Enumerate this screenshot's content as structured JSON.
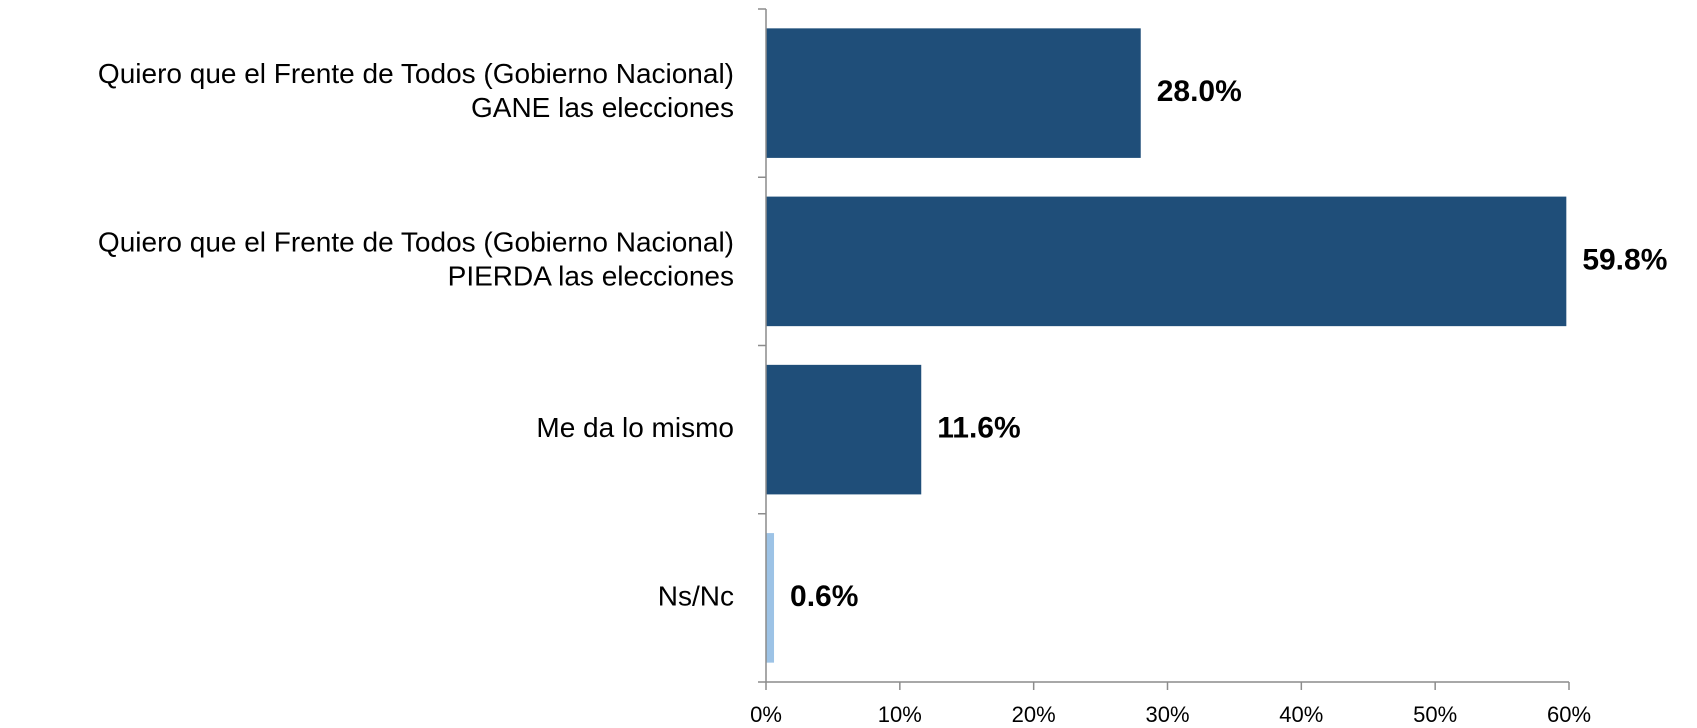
{
  "chart_data": {
    "type": "bar",
    "orientation": "horizontal",
    "categories": [
      "Quiero que el Frente de Todos (Gobierno Nacional)\nGANE las elecciones",
      "Quiero que el Frente de Todos (Gobierno Nacional)\nPIERDA las elecciones",
      "Me da lo mismo",
      "Ns/Nc"
    ],
    "values": [
      28.0,
      59.8,
      11.6,
      0.6
    ],
    "value_labels": [
      "28.0%",
      "59.8%",
      "11.6%",
      "0.6%"
    ],
    "colors": [
      "#1f4e79",
      "#1f4e79",
      "#1f4e79",
      "#9dc3e6"
    ],
    "xlim": [
      0,
      60
    ],
    "xticks": [
      {
        "value": 0,
        "label": "0%"
      },
      {
        "value": 10,
        "label": "10%"
      },
      {
        "value": 20,
        "label": "20%"
      },
      {
        "value": 30,
        "label": "30%"
      },
      {
        "value": 40,
        "label": "40%"
      },
      {
        "value": 50,
        "label": "50%"
      },
      {
        "value": 60,
        "label": "60%"
      }
    ],
    "grid": false
  }
}
